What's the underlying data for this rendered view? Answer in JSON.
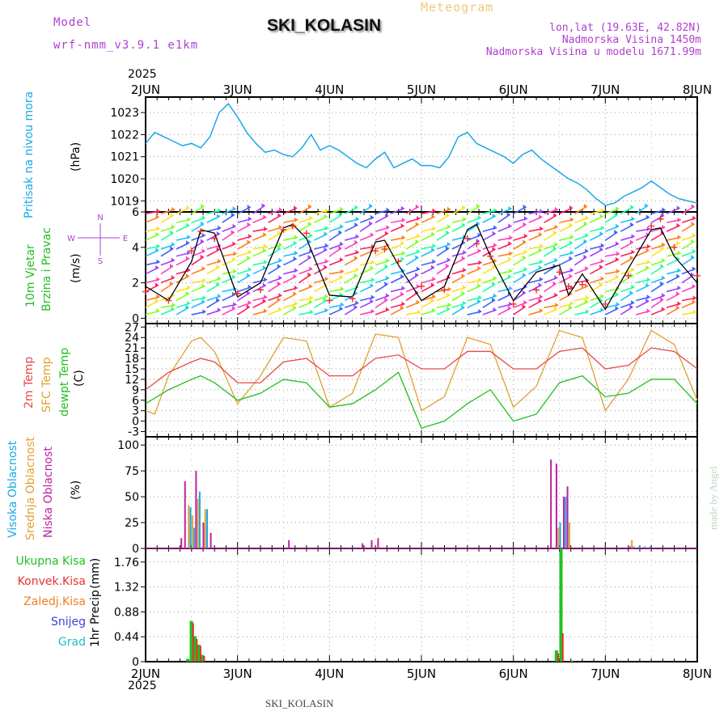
{
  "header": {
    "model_label": "Model",
    "model_name": "wrf-nmm_v3.9.1 e1km",
    "title": "Meteogram",
    "station": "SKI_KOLASIN",
    "lonlat": "lon,lat (19.63E, 42.82N)",
    "elevation": "Nadmorska Visina 1450m",
    "model_elevation": "Nadmorska Visina u modelu 1671.99m"
  },
  "footer": {
    "station": "SKI_KOLASIN",
    "credit": "made by Angel"
  },
  "colors": {
    "pressure": "#1aa8e8",
    "wind_speed": "#000000",
    "wind_gust": "#e83030",
    "temp_2m": "#e84848",
    "temp_sfc": "#e0a030",
    "dewpoint": "#20c020",
    "cloud_high": "#1aa8e8",
    "cloud_mid": "#e0a030",
    "cloud_low": "#c020a0",
    "precip_total": "#20c020",
    "precip_conv": "#e83030",
    "precip_frozen": "#f08020",
    "precip_snow": "#4040e0",
    "precip_graupel": "#20c0c0"
  },
  "chart_data": [
    {
      "type": "line",
      "panel": "pressure",
      "ylabel_main": "Pritisak na nivou mora",
      "ylabel_unit": "(hPa)",
      "yticks": [
        1019,
        1020,
        1021,
        1022,
        1023
      ],
      "ylim": [
        1018.5,
        1023.7
      ],
      "x_top_year": "2025",
      "x_ticklabels": [
        "2JUN",
        "3JUN",
        "4JUN",
        "5JUN",
        "6JUN",
        "7JUN",
        "8JUN"
      ],
      "xlim": [
        0,
        6
      ],
      "grid": true,
      "series": [
        {
          "x": [
            0,
            0.1,
            0.2,
            0.3,
            0.4,
            0.5,
            0.6,
            0.7,
            0.8,
            0.9,
            1.0,
            1.1,
            1.2,
            1.3,
            1.4,
            1.5,
            1.6,
            1.7,
            1.8,
            1.9,
            2.0,
            2.1,
            2.2,
            2.3,
            2.4,
            2.5,
            2.6,
            2.7,
            2.8,
            2.9,
            3.0,
            3.1,
            3.2,
            3.3,
            3.4,
            3.5,
            3.6,
            3.7,
            3.8,
            3.9,
            4.0,
            4.1,
            4.2,
            4.3,
            4.4,
            4.5,
            4.6,
            4.7,
            4.8,
            4.9,
            5.0,
            5.1,
            5.2,
            5.3,
            5.4,
            5.5,
            5.6,
            5.7,
            5.8,
            5.9,
            6.0
          ],
          "values": [
            1021.6,
            1022.1,
            1021.9,
            1021.7,
            1021.5,
            1021.6,
            1021.4,
            1021.9,
            1023.0,
            1023.4,
            1022.8,
            1022.1,
            1021.6,
            1021.2,
            1021.3,
            1021.1,
            1021.0,
            1021.4,
            1022.0,
            1021.3,
            1021.5,
            1021.3,
            1021.0,
            1020.7,
            1020.5,
            1020.9,
            1021.2,
            1020.5,
            1020.7,
            1020.9,
            1020.6,
            1020.6,
            1020.5,
            1021.0,
            1021.9,
            1022.1,
            1021.6,
            1021.4,
            1021.2,
            1021.0,
            1020.7,
            1021.1,
            1021.3,
            1020.9,
            1020.6,
            1020.3,
            1020.0,
            1019.8,
            1019.5,
            1019.1,
            1018.8,
            1018.9,
            1019.2,
            1019.4,
            1019.6,
            1019.9,
            1019.6,
            1019.3,
            1019.1,
            1019.0,
            1018.9
          ]
        }
      ]
    },
    {
      "type": "line",
      "panel": "wind",
      "ylabel_main": "10m Vjetar",
      "ylabel_sub": "Brzina i Pravac",
      "ylabel_unit": "(m/s)",
      "compass": {
        "n": "N",
        "s": "S",
        "w": "W",
        "e": "E"
      },
      "yticks": [
        0,
        2,
        4,
        6
      ],
      "ylim": [
        -0.3,
        6
      ],
      "series": [
        {
          "name": "speed",
          "x": [
            0,
            0.25,
            0.5,
            0.6,
            0.75,
            1.0,
            1.25,
            1.5,
            1.6,
            1.75,
            2.0,
            2.25,
            2.5,
            2.6,
            2.75,
            3.0,
            3.25,
            3.5,
            3.6,
            3.75,
            4.0,
            4.25,
            4.5,
            4.6,
            4.75,
            5.0,
            5.25,
            5.5,
            5.6,
            5.75,
            6.0
          ],
          "values": [
            1.8,
            1.0,
            3.2,
            5.0,
            4.8,
            1.2,
            2.0,
            5.1,
            5.3,
            4.5,
            1.3,
            1.2,
            4.3,
            4.4,
            3.0,
            1.0,
            1.8,
            5.0,
            5.3,
            3.5,
            1.0,
            2.6,
            3.0,
            1.3,
            2.5,
            0.5,
            2.8,
            5.0,
            5.1,
            3.5,
            2.0
          ]
        },
        {
          "name": "gust",
          "x": [
            0,
            0.25,
            0.5,
            0.6,
            0.75,
            1.0,
            1.25,
            1.5,
            1.6,
            1.75,
            2.0,
            2.25,
            2.5,
            2.6,
            2.75,
            3.0,
            3.25,
            3.5,
            3.6,
            3.75,
            4.0,
            4.25,
            4.5,
            4.6,
            4.75,
            5.0,
            5.25,
            5.5,
            5.6,
            5.75,
            6.0
          ],
          "values": [
            1.5,
            1.0,
            3.8,
            4.9,
            4.5,
            1.4,
            1.6,
            5.0,
            5.2,
            4.8,
            1.0,
            1.1,
            3.8,
            3.9,
            3.2,
            1.8,
            1.6,
            4.5,
            4.2,
            3.5,
            0.8,
            1.6,
            2.6,
            1.8,
            1.9,
            0.8,
            2.4,
            5.2,
            5.6,
            4.0,
            2.4
          ]
        }
      ]
    },
    {
      "type": "line",
      "panel": "temperature",
      "ylabel_lines": [
        "2m Temp",
        "SFC Temp",
        "dewpt Temp"
      ],
      "ylabel_unit": "(C)",
      "yticks": [
        -3,
        0,
        3,
        6,
        9,
        12,
        15,
        18,
        21,
        24,
        27
      ],
      "ylim": [
        -4.5,
        28
      ],
      "series": [
        {
          "name": "2m Temp",
          "x": [
            0,
            0.25,
            0.5,
            0.6,
            0.75,
            1.0,
            1.25,
            1.5,
            1.75,
            2.0,
            2.25,
            2.5,
            2.75,
            3.0,
            3.25,
            3.5,
            3.75,
            4.0,
            4.25,
            4.5,
            4.75,
            5.0,
            5.25,
            5.5,
            5.75,
            6.0
          ],
          "values": [
            9,
            14,
            17,
            18,
            17,
            11,
            11,
            17,
            18,
            13,
            13,
            18,
            19,
            15,
            15,
            20,
            20,
            15,
            15,
            20,
            21,
            15,
            16,
            21,
            20,
            15
          ]
        },
        {
          "name": "SFC Temp",
          "x": [
            0,
            0.1,
            0.25,
            0.5,
            0.6,
            0.75,
            1.0,
            1.25,
            1.5,
            1.75,
            2.0,
            2.25,
            2.5,
            2.75,
            3.0,
            3.25,
            3.5,
            3.75,
            4.0,
            4.25,
            4.5,
            4.75,
            5.0,
            5.25,
            5.5,
            5.75,
            6.0
          ],
          "values": [
            3,
            2,
            13,
            23,
            24,
            20,
            5,
            13,
            24,
            23,
            4,
            8,
            25,
            24,
            3,
            7,
            24,
            22,
            4,
            10,
            26,
            24,
            3,
            12,
            26,
            22,
            6
          ]
        },
        {
          "name": "dewpt Temp",
          "x": [
            0,
            0.25,
            0.5,
            0.6,
            0.75,
            1.0,
            1.25,
            1.5,
            1.75,
            2.0,
            2.25,
            2.5,
            2.75,
            3.0,
            3.25,
            3.5,
            3.75,
            4.0,
            4.25,
            4.5,
            4.75,
            5.0,
            5.25,
            5.5,
            5.75,
            6.0
          ],
          "values": [
            5,
            9,
            12,
            13,
            11,
            6,
            8,
            12,
            11,
            4,
            5,
            9,
            14,
            -2,
            0,
            5,
            9,
            0,
            2,
            11,
            13,
            7,
            8,
            12,
            12,
            5
          ]
        }
      ]
    },
    {
      "type": "bar",
      "panel": "cloud",
      "ylabel_lines": [
        "Visoka Oblacnost",
        "Srednja Oblacnost",
        "Niska Oblacnost"
      ],
      "ylabel_unit": "(%)",
      "yticks": [
        0,
        25,
        50,
        75,
        100
      ],
      "ylim": [
        0,
        108
      ],
      "series": [
        {
          "name": "Visoka Oblacnost",
          "x": [
            0.48,
            0.52,
            0.58,
            0.66,
            3.4,
            4.44,
            4.5,
            4.56,
            5.3,
            5.36,
            5.42,
            5.48
          ],
          "values": [
            40,
            20,
            55,
            38,
            0,
            0,
            25,
            50,
            2,
            2,
            2,
            2
          ]
        },
        {
          "name": "Srednja Oblacnost",
          "x": [
            0.46,
            0.5,
            0.56,
            0.64,
            4.42,
            4.48,
            4.6,
            5.28
          ],
          "values": [
            42,
            32,
            48,
            38,
            0,
            20,
            25,
            8
          ]
        },
        {
          "name": "Niska Oblacnost",
          "x": [
            0.38,
            0.42,
            0.54,
            0.62,
            0.7,
            1.55,
            2.35,
            2.45,
            2.52,
            4.4,
            4.46,
            4.54,
            4.58,
            5.26
          ],
          "values": [
            10,
            65,
            75,
            25,
            15,
            8,
            5,
            8,
            10,
            86,
            82,
            50,
            60,
            2
          ]
        }
      ]
    },
    {
      "type": "bar",
      "panel": "precip",
      "ylabel_main": "1hr Precip",
      "ylabel_unit": "(mm)",
      "legend": [
        "Ukupna Kisa",
        "Konvek.Kisa",
        "Zaledj.Kisa",
        "Snijeg",
        "Grad"
      ],
      "yticks": [
        0,
        0.44,
        0.88,
        1.32,
        1.76
      ],
      "ylim": [
        0,
        2.0
      ],
      "series": [
        {
          "name": "Ukupna Kisa",
          "x": [
            0.44,
            0.48,
            0.52,
            0.56,
            0.6,
            4.45,
            4.5,
            4.62
          ],
          "values": [
            0.05,
            0.72,
            0.45,
            0.3,
            0.12,
            0.2,
            2.05,
            0.02
          ]
        },
        {
          "name": "Konvek.Kisa",
          "x": [
            0.46,
            0.5,
            0.54,
            0.58,
            0.62,
            4.47,
            4.52
          ],
          "values": [
            0.02,
            0.68,
            0.4,
            0.28,
            0.1,
            0.15,
            0.5
          ]
        }
      ],
      "x_ticklabels": [
        "2JUN",
        "3JUN",
        "4JUN",
        "5JUN",
        "6JUN",
        "7JUN",
        "8JUN"
      ],
      "x_bottom_year": "2025"
    }
  ]
}
